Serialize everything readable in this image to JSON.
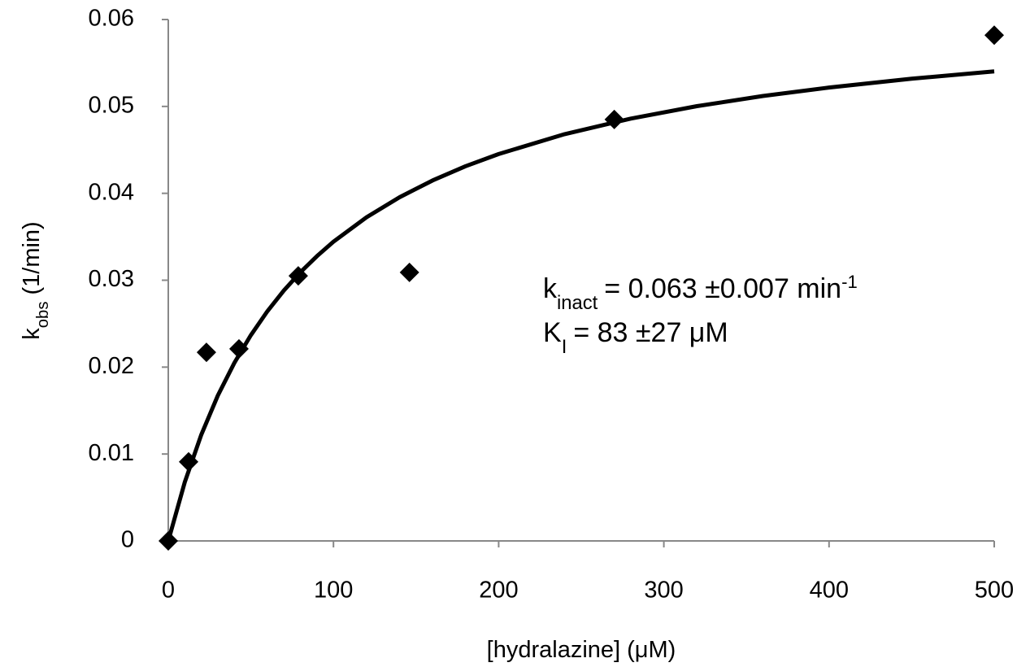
{
  "chart_data": {
    "type": "scatter",
    "xlabel": "[hydralazine] (μM)",
    "ylabel": {
      "main": "k",
      "sub": "obs",
      "rest": "(1/min)"
    },
    "annotations": [
      {
        "main": "k",
        "sub": "inact",
        "rest": "= 0.063 ±0.007 min",
        "sup": "-1"
      },
      {
        "main": "K",
        "sub": "I",
        "rest": "= 83 ±27 μM"
      }
    ],
    "xlim": [
      0,
      500
    ],
    "xticks": [
      0,
      100,
      200,
      300,
      400,
      500
    ],
    "ylim": [
      0,
      0.06
    ],
    "yticks": [
      0,
      0.01,
      0.02,
      0.03,
      0.04,
      0.05,
      0.06
    ],
    "grid": false,
    "series": [
      {
        "type": "scatter",
        "marker": "diamond",
        "color": "#000000",
        "x": [
          0,
          12.3,
          23.1,
          42.8,
          78.7,
          146,
          270,
          500
        ],
        "values": [
          0,
          0.0091,
          0.0217,
          0.0221,
          0.0305,
          0.0309,
          0.0485,
          0.0582
        ]
      },
      {
        "type": "line",
        "color": "#000000",
        "x": [
          0,
          10,
          20,
          30,
          40,
          50,
          60,
          70,
          80,
          90,
          100,
          120,
          140,
          160,
          180,
          200,
          240,
          280,
          320,
          360,
          400,
          450,
          500
        ],
        "values": [
          0,
          0.00677,
          0.01223,
          0.01673,
          0.02049,
          0.02368,
          0.02643,
          0.02882,
          0.03092,
          0.03277,
          0.03443,
          0.03724,
          0.03955,
          0.04148,
          0.04312,
          0.04452,
          0.04681,
          0.0486,
          0.05003,
          0.0512,
          0.05217,
          0.05319,
          0.05403
        ]
      }
    ]
  }
}
